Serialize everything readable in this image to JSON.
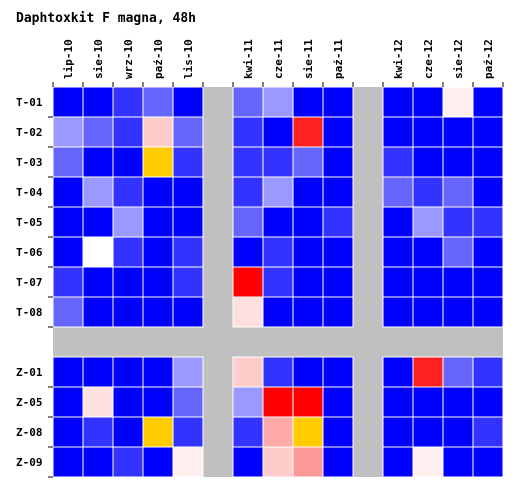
{
  "chart_data": {
    "type": "heatmap",
    "title": "Daphtoxkit F magna, 48h",
    "groups": [
      {
        "columns": [
          "lip-10",
          "sie-10",
          "wrz-10",
          "paź-10",
          "lis-10"
        ]
      },
      {
        "columns": [
          "kwi-11",
          "cze-11",
          "sie-11",
          "paź-11"
        ]
      },
      {
        "columns": [
          "kwi-12",
          "cze-12",
          "sie-12",
          "paź-12"
        ]
      }
    ],
    "columns": [
      "lip-10",
      "sie-10",
      "wrz-10",
      "paź-10",
      "lis-10",
      "kwi-11",
      "cze-11",
      "sie-11",
      "paź-11",
      "kwi-12",
      "cze-12",
      "sie-12",
      "paź-12"
    ],
    "row_groups": [
      {
        "rows": [
          "T-01",
          "T-02",
          "T-03",
          "T-04",
          "T-05",
          "T-06",
          "T-07",
          "T-08"
        ]
      },
      {
        "rows": [
          "Z-01",
          "Z-05",
          "Z-08",
          "Z-09"
        ]
      }
    ],
    "rows": [
      "T-01",
      "T-02",
      "T-03",
      "T-04",
      "T-05",
      "T-06",
      "T-07",
      "T-08",
      "Z-01",
      "Z-05",
      "Z-08",
      "Z-09"
    ],
    "cell_colors": [
      [
        "#0000ff",
        "#0000ff",
        "#3333ff",
        "#6666ff",
        "#0000ff",
        "#6666ff",
        "#9999ff",
        "#0000ff",
        "#0000ff",
        "#0000ff",
        "#0000ff",
        "#fff0f0",
        "#0000ff"
      ],
      [
        "#9999ff",
        "#6666ff",
        "#3333ff",
        "#ffcccc",
        "#6666ff",
        "#3333ff",
        "#0000ff",
        "#ff2020",
        "#0000ff",
        "#0000ff",
        "#0000ff",
        "#0000ff",
        "#0000ff"
      ],
      [
        "#6666ff",
        "#0000ff",
        "#0000ff",
        "#ffcc00",
        "#3333ff",
        "#3333ff",
        "#3333ff",
        "#6666ff",
        "#0000ff",
        "#3333ff",
        "#0000ff",
        "#0000ff",
        "#0000ff"
      ],
      [
        "#0000ff",
        "#9999ff",
        "#3333ff",
        "#0000ff",
        "#0000ff",
        "#3333ff",
        "#9999ff",
        "#0000ff",
        "#0000ff",
        "#6666ff",
        "#3333ff",
        "#6666ff",
        "#0000ff"
      ],
      [
        "#0000ff",
        "#0000ff",
        "#9999ff",
        "#0000ff",
        "#0000ff",
        "#6666ff",
        "#0000ff",
        "#0000ff",
        "#3333ff",
        "#0000ff",
        "#9999ff",
        "#3333ff",
        "#3333ff"
      ],
      [
        "#0000ff",
        "#ffffff",
        "#3333ff",
        "#0000ff",
        "#3333ff",
        "#0000ff",
        "#3333ff",
        "#0000ff",
        "#0000ff",
        "#0000ff",
        "#0000ff",
        "#6666ff",
        "#0000ff"
      ],
      [
        "#3333ff",
        "#0000ff",
        "#0000ff",
        "#0000ff",
        "#3333ff",
        "#ff0000",
        "#3333ff",
        "#0000ff",
        "#0000ff",
        "#0000ff",
        "#0000ff",
        "#0000ff",
        "#0000ff"
      ],
      [
        "#6666ff",
        "#0000ff",
        "#0000ff",
        "#0000ff",
        "#0000ff",
        "#ffe0e0",
        "#0000ff",
        "#0000ff",
        "#0000ff",
        "#0000ff",
        "#0000ff",
        "#0000ff",
        "#0000ff"
      ],
      [
        "#0000ff",
        "#0000ff",
        "#0000ff",
        "#0000ff",
        "#9999ff",
        "#ffcccc",
        "#3333ff",
        "#0000ff",
        "#0000ff",
        "#0000ff",
        "#ff2020",
        "#6666ff",
        "#3333ff"
      ],
      [
        "#0000ff",
        "#ffe0e0",
        "#0000ff",
        "#0000ff",
        "#6666ff",
        "#9999ff",
        "#ff0000",
        "#ff0000",
        "#0000ff",
        "#0000ff",
        "#0000ff",
        "#0000ff",
        "#0000ff"
      ],
      [
        "#0000ff",
        "#3333ff",
        "#0000ff",
        "#ffcc00",
        "#3333ff",
        "#3333ff",
        "#ffaaaa",
        "#ffcc00",
        "#0000ff",
        "#0000ff",
        "#0000ff",
        "#0000ff",
        "#3333ff"
      ],
      [
        "#0000ff",
        "#0000ff",
        "#3333ff",
        "#0000ff",
        "#fff0f0",
        "#0000ff",
        "#ffcccc",
        "#ff9999",
        "#0000ff",
        "#0000ff",
        "#fff0f0",
        "#0000ff",
        "#0000ff"
      ]
    ],
    "gap_color": "#c0c0c0",
    "grid_line_color": "#ffffff",
    "grid": true,
    "legend": "none"
  }
}
